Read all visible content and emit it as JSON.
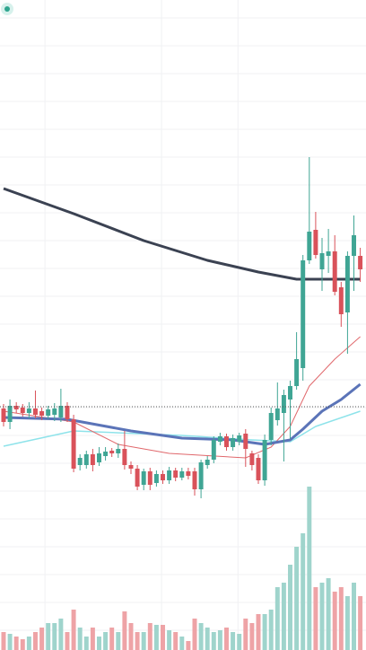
{
  "chart_data": {
    "type": "candlestick",
    "xlim": [
      -0.56,
      56.9
    ],
    "ylim": [
      0,
      724
    ],
    "vlim": [
      0,
      200
    ],
    "grid": true,
    "xticks": [
      6.5,
      24.8,
      36.8
    ],
    "yticks": [
      704,
      673,
      642,
      611,
      580,
      549,
      518,
      487,
      456,
      425,
      394,
      363,
      332,
      301,
      270,
      239,
      208,
      177,
      146,
      115,
      84,
      53,
      22
    ],
    "up_color": "#3fa594",
    "down_color": "#d9525a",
    "open": [
      269,
      254,
      272,
      270,
      264,
      269,
      266,
      261,
      262,
      259,
      272,
      257,
      206,
      206,
      218,
      209,
      216,
      222,
      219,
      224,
      206,
      202,
      184,
      199,
      186,
      196,
      189,
      200,
      192,
      199,
      199,
      179,
      206,
      212,
      232,
      238,
      226,
      232,
      241,
      219,
      214,
      189,
      234,
      256,
      264,
      279,
      294,
      314,
      434,
      468,
      424,
      439,
      444,
      404,
      376,
      439,
      439
    ],
    "high": [
      274,
      279,
      276,
      274,
      276,
      289,
      270,
      272,
      275,
      291,
      276,
      262,
      218,
      222,
      224,
      226,
      226,
      225,
      230,
      244,
      210,
      206,
      202,
      203,
      200,
      200,
      204,
      203,
      203,
      203,
      203,
      212,
      216,
      238,
      242,
      241,
      240,
      242,
      246,
      222,
      218,
      240,
      270,
      298,
      290,
      300,
      354,
      440,
      549,
      488,
      459,
      469,
      462,
      410,
      444,
      484,
      448
    ],
    "low": [
      249,
      246,
      264,
      260,
      258,
      258,
      256,
      257,
      255,
      254,
      254,
      198,
      200,
      202,
      199,
      205,
      211,
      215,
      214,
      201,
      196,
      178,
      178,
      178,
      182,
      185,
      185,
      188,
      189,
      190,
      172,
      169,
      202,
      208,
      228,
      222,
      222,
      228,
      204,
      200,
      185,
      183,
      228,
      250,
      210,
      235,
      290,
      300,
      430,
      436,
      400,
      420,
      395,
      360,
      330,
      400,
      410
    ],
    "close": [
      254,
      272,
      268,
      264,
      269,
      262,
      261,
      268,
      269,
      272,
      257,
      202,
      214,
      218,
      206,
      219,
      221,
      219,
      224,
      206,
      202,
      182,
      199,
      184,
      196,
      189,
      200,
      192,
      199,
      194,
      179,
      209,
      212,
      234,
      238,
      226,
      236,
      239,
      224,
      206,
      189,
      234,
      264,
      269,
      284,
      294,
      324,
      434,
      466,
      440,
      442,
      444,
      399,
      374,
      439,
      462,
      424
    ],
    "volume": {
      "values": [
        20,
        18,
        15,
        12,
        15,
        20,
        25,
        30,
        30,
        35,
        20,
        45,
        25,
        15,
        25,
        15,
        20,
        25,
        20,
        43,
        30,
        20,
        20,
        30,
        28,
        28,
        22,
        20,
        15,
        10,
        35,
        30,
        25,
        20,
        22,
        25,
        20,
        18,
        35,
        30,
        40,
        40,
        45,
        70,
        75,
        95,
        115,
        130,
        182,
        70,
        75,
        80,
        65,
        70,
        60,
        75,
        60
      ],
      "up_color": "#9fd4cc",
      "down_color": "#eea3a6"
    },
    "series": [
      {
        "color": "#3b4252",
        "width": 3,
        "x": [
          0,
          11,
          22,
          32,
          40,
          46,
          56
        ],
        "values": [
          514,
          486,
          456,
          434,
          421,
          413,
          413
        ]
      },
      {
        "color": "#8ee3ea",
        "width": 1.5,
        "x": [
          0,
          11,
          28,
          39,
          45,
          49,
          56
        ],
        "values": [
          227,
          244,
          239,
          234,
          232,
          249,
          266
        ]
      },
      {
        "color": "#e0686c",
        "width": 1,
        "x": [
          0,
          11,
          18,
          26,
          38,
          42,
          45,
          48,
          52,
          56
        ],
        "values": [
          266,
          254,
          229,
          219,
          214,
          226,
          249,
          294,
          324,
          349
        ]
      },
      {
        "color": "#5b74b8",
        "width": 3,
        "x": [
          0,
          10,
          20,
          28,
          36,
          41,
          45,
          47,
          50,
          53,
          56
        ],
        "values": [
          259,
          257,
          244,
          236,
          234,
          229,
          234,
          246,
          266,
          279,
          296
        ]
      }
    ],
    "price_line": {
      "value": 271,
      "color": "#555555"
    }
  }
}
